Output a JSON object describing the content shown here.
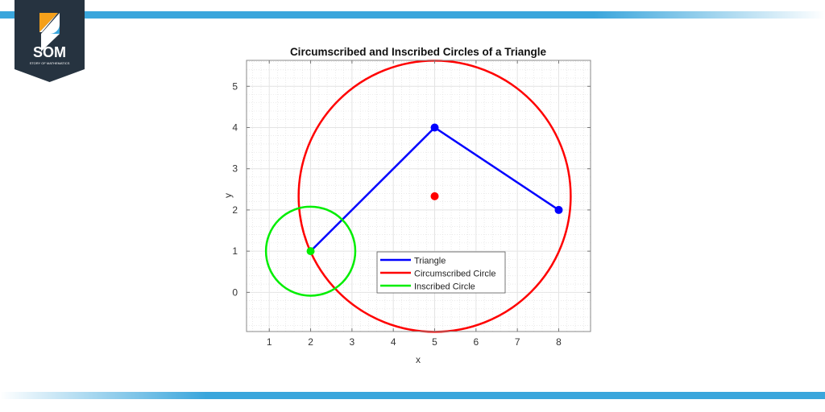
{
  "logo": {
    "text": "SOM",
    "subtext": "STORY OF MATHEMATICS"
  },
  "chart_data": {
    "type": "line",
    "title": "Circumscribed and Inscribed Circles of a Triangle",
    "xlabel": "x",
    "ylabel": "y",
    "xlim": [
      0.45,
      8.77
    ],
    "ylim": [
      -0.95,
      5.63
    ],
    "xticks": [
      1,
      2,
      3,
      4,
      5,
      6,
      7,
      8
    ],
    "yticks": [
      0,
      1,
      2,
      3,
      4,
      5
    ],
    "grid": true,
    "minor_grid": true,
    "legend_position": "lower-center",
    "series": [
      {
        "name": "Triangle",
        "kind": "polyline",
        "color": "#0000ff",
        "points": [
          [
            2,
            1
          ],
          [
            5,
            4
          ],
          [
            8,
            2
          ]
        ]
      },
      {
        "name": "Circumscribed Circle",
        "kind": "circle",
        "color": "#ff0000",
        "center": [
          5,
          2.333
        ],
        "radius": 3.29
      },
      {
        "name": "Inscribed Circle",
        "kind": "circle",
        "color": "#00ee00",
        "center": [
          2,
          1
        ],
        "radius": 1.08
      }
    ],
    "markers": [
      {
        "x": 5,
        "y": 4,
        "color": "#0000ff"
      },
      {
        "x": 8,
        "y": 2,
        "color": "#0000ff"
      },
      {
        "x": 5,
        "y": 2.333,
        "color": "#ff0000"
      },
      {
        "x": 2,
        "y": 1,
        "color": "#00ee00"
      }
    ]
  }
}
